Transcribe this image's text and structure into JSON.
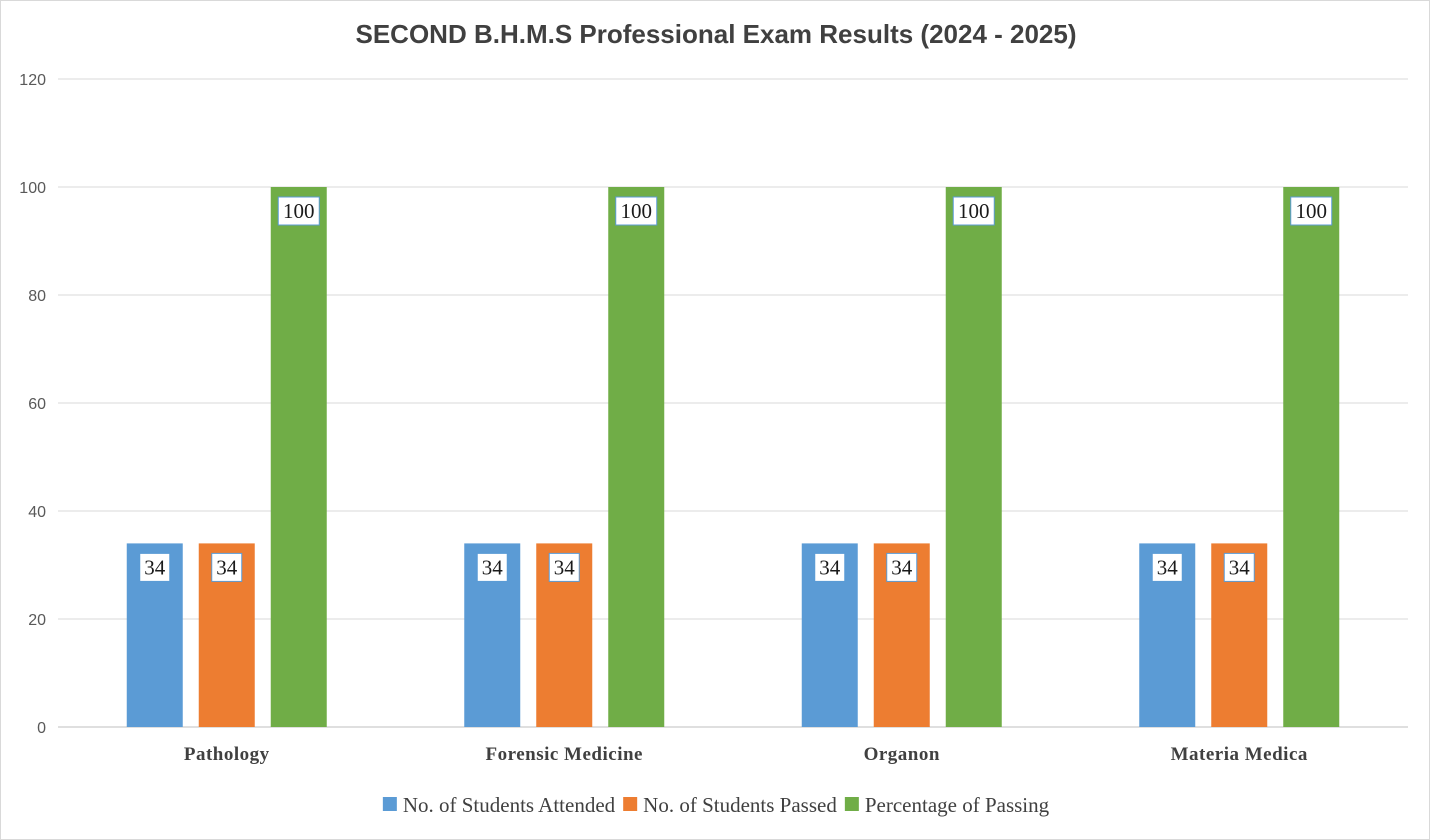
{
  "chart_data": {
    "type": "bar",
    "title": "SECOND B.H.M.S Professional Exam Results (2024 - 2025)",
    "categories": [
      "Pathology",
      "Forensic Medicine",
      "Organon",
      "Materia Medica"
    ],
    "series": [
      {
        "name": "No. of Students Attended",
        "color": "#5b9bd5",
        "values": [
          34,
          34,
          34,
          34
        ]
      },
      {
        "name": "No. of Students Passed",
        "color": "#ed7d31",
        "values": [
          34,
          34,
          34,
          34
        ]
      },
      {
        "name": "Percentage of Passing",
        "color": "#70ad47",
        "values": [
          100,
          100,
          100,
          100
        ]
      }
    ],
    "ylim": [
      0,
      120
    ],
    "yticks": [
      0,
      20,
      40,
      60,
      80,
      100,
      120
    ],
    "grid": true,
    "data_labels": true,
    "legend": "bottom"
  }
}
